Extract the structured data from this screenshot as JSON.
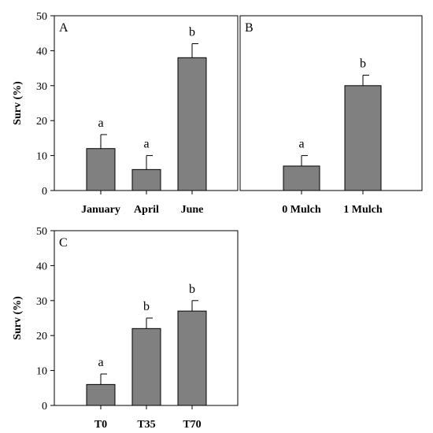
{
  "chart_data": [
    {
      "type": "bar",
      "panel_label": "A",
      "ylabel": "Surv (%)",
      "ylim": [
        0,
        50
      ],
      "yticks": [
        0,
        10,
        20,
        30,
        40,
        50
      ],
      "categories": [
        "January",
        "April",
        "June"
      ],
      "values": [
        12,
        6,
        38
      ],
      "errors": [
        4,
        4,
        4
      ],
      "significance": [
        "a",
        "a",
        "b"
      ],
      "bar_color": "#808080"
    },
    {
      "type": "bar",
      "panel_label": "B",
      "ylabel": "",
      "ylim": [
        0,
        50
      ],
      "yticks": [],
      "categories": [
        "0 Mulch",
        "1 Mulch"
      ],
      "values": [
        7,
        30
      ],
      "errors": [
        3,
        3
      ],
      "significance": [
        "a",
        "b"
      ],
      "bar_color": "#808080"
    },
    {
      "type": "bar",
      "panel_label": "C",
      "ylabel": "Surv (%)",
      "ylim": [
        0,
        50
      ],
      "yticks": [
        0,
        10,
        20,
        30,
        40,
        50
      ],
      "categories": [
        "T0",
        "T35",
        "T70"
      ],
      "values": [
        6,
        22,
        27
      ],
      "errors": [
        3,
        3,
        3
      ],
      "significance": [
        "a",
        "b",
        "b"
      ],
      "bar_color": "#808080"
    }
  ]
}
